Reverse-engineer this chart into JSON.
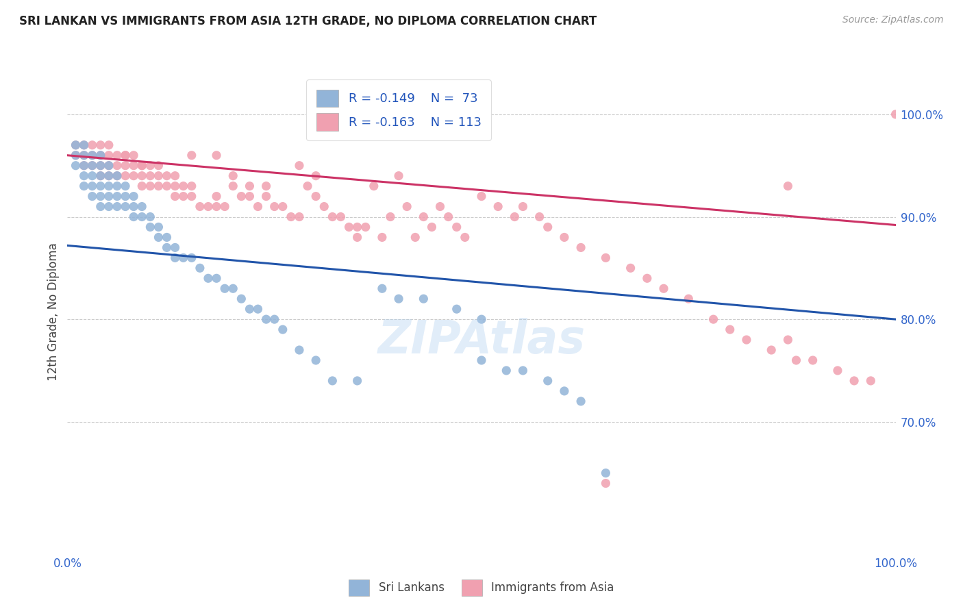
{
  "title": "SRI LANKAN VS IMMIGRANTS FROM ASIA 12TH GRADE, NO DIPLOMA CORRELATION CHART",
  "source": "Source: ZipAtlas.com",
  "ylabel": "12th Grade, No Diploma",
  "y_tick_values": [
    1.0,
    0.9,
    0.8,
    0.7
  ],
  "y_tick_labels": [
    "100.0%",
    "90.0%",
    "80.0%",
    "70.0%"
  ],
  "x_range": [
    0.0,
    1.0
  ],
  "y_range": [
    0.575,
    1.04
  ],
  "legend_blue_r": "R = -0.149",
  "legend_blue_n": "N =  73",
  "legend_pink_r": "R = -0.163",
  "legend_pink_n": "N = 113",
  "blue_color": "#92B4D8",
  "pink_color": "#F0A0B0",
  "line_blue_color": "#2255AA",
  "line_pink_color": "#CC3366",
  "blue_line_y0": 0.872,
  "blue_line_y1": 0.8,
  "pink_line_y0": 0.96,
  "pink_line_y1": 0.892,
  "blue_scatter_x": [
    0.01,
    0.01,
    0.01,
    0.02,
    0.02,
    0.02,
    0.02,
    0.02,
    0.03,
    0.03,
    0.03,
    0.03,
    0.03,
    0.04,
    0.04,
    0.04,
    0.04,
    0.04,
    0.04,
    0.05,
    0.05,
    0.05,
    0.05,
    0.05,
    0.06,
    0.06,
    0.06,
    0.06,
    0.07,
    0.07,
    0.07,
    0.08,
    0.08,
    0.08,
    0.09,
    0.09,
    0.1,
    0.1,
    0.11,
    0.11,
    0.12,
    0.12,
    0.13,
    0.13,
    0.14,
    0.15,
    0.16,
    0.17,
    0.18,
    0.19,
    0.2,
    0.21,
    0.22,
    0.23,
    0.24,
    0.25,
    0.26,
    0.28,
    0.3,
    0.32,
    0.35,
    0.38,
    0.4,
    0.43,
    0.47,
    0.5,
    0.5,
    0.53,
    0.55,
    0.58,
    0.6,
    0.62,
    0.65
  ],
  "blue_scatter_y": [
    0.97,
    0.96,
    0.95,
    0.97,
    0.96,
    0.95,
    0.94,
    0.93,
    0.96,
    0.95,
    0.94,
    0.93,
    0.92,
    0.96,
    0.95,
    0.94,
    0.93,
    0.92,
    0.91,
    0.95,
    0.94,
    0.93,
    0.92,
    0.91,
    0.94,
    0.93,
    0.92,
    0.91,
    0.93,
    0.92,
    0.91,
    0.92,
    0.91,
    0.9,
    0.91,
    0.9,
    0.9,
    0.89,
    0.89,
    0.88,
    0.88,
    0.87,
    0.87,
    0.86,
    0.86,
    0.86,
    0.85,
    0.84,
    0.84,
    0.83,
    0.83,
    0.82,
    0.81,
    0.81,
    0.8,
    0.8,
    0.79,
    0.77,
    0.76,
    0.74,
    0.74,
    0.83,
    0.82,
    0.82,
    0.81,
    0.8,
    0.76,
    0.75,
    0.75,
    0.74,
    0.73,
    0.72,
    0.65
  ],
  "pink_scatter_x": [
    0.01,
    0.01,
    0.02,
    0.02,
    0.02,
    0.03,
    0.03,
    0.03,
    0.04,
    0.04,
    0.04,
    0.04,
    0.05,
    0.05,
    0.05,
    0.05,
    0.06,
    0.06,
    0.06,
    0.07,
    0.07,
    0.07,
    0.08,
    0.08,
    0.08,
    0.09,
    0.09,
    0.09,
    0.1,
    0.1,
    0.1,
    0.11,
    0.11,
    0.12,
    0.12,
    0.13,
    0.13,
    0.14,
    0.14,
    0.15,
    0.15,
    0.16,
    0.17,
    0.18,
    0.18,
    0.19,
    0.2,
    0.2,
    0.21,
    0.22,
    0.22,
    0.23,
    0.24,
    0.24,
    0.25,
    0.26,
    0.27,
    0.28,
    0.29,
    0.3,
    0.31,
    0.32,
    0.33,
    0.34,
    0.35,
    0.36,
    0.37,
    0.38,
    0.39,
    0.4,
    0.41,
    0.42,
    0.43,
    0.44,
    0.45,
    0.46,
    0.47,
    0.48,
    0.5,
    0.52,
    0.54,
    0.55,
    0.57,
    0.58,
    0.6,
    0.62,
    0.65,
    0.68,
    0.7,
    0.72,
    0.75,
    0.78,
    0.8,
    0.82,
    0.85,
    0.87,
    0.88,
    0.9,
    0.93,
    0.95,
    0.97,
    1.0,
    0.15,
    0.07,
    0.09,
    0.11,
    0.13,
    0.18,
    0.28,
    0.3,
    0.35,
    0.65,
    0.87
  ],
  "pink_scatter_y": [
    0.97,
    0.96,
    0.97,
    0.96,
    0.95,
    0.97,
    0.96,
    0.95,
    0.97,
    0.96,
    0.95,
    0.94,
    0.97,
    0.96,
    0.95,
    0.94,
    0.96,
    0.95,
    0.94,
    0.96,
    0.95,
    0.94,
    0.96,
    0.95,
    0.94,
    0.95,
    0.94,
    0.93,
    0.95,
    0.94,
    0.93,
    0.94,
    0.93,
    0.94,
    0.93,
    0.93,
    0.92,
    0.93,
    0.92,
    0.93,
    0.92,
    0.91,
    0.91,
    0.92,
    0.91,
    0.91,
    0.94,
    0.93,
    0.92,
    0.93,
    0.92,
    0.91,
    0.93,
    0.92,
    0.91,
    0.91,
    0.9,
    0.9,
    0.93,
    0.92,
    0.91,
    0.9,
    0.9,
    0.89,
    0.89,
    0.89,
    0.93,
    0.88,
    0.9,
    0.94,
    0.91,
    0.88,
    0.9,
    0.89,
    0.91,
    0.9,
    0.89,
    0.88,
    0.92,
    0.91,
    0.9,
    0.91,
    0.9,
    0.89,
    0.88,
    0.87,
    0.86,
    0.85,
    0.84,
    0.83,
    0.82,
    0.8,
    0.79,
    0.78,
    0.77,
    0.78,
    0.76,
    0.76,
    0.75,
    0.74,
    0.74,
    1.0,
    0.96,
    0.96,
    0.95,
    0.95,
    0.94,
    0.96,
    0.95,
    0.94,
    0.88,
    0.64,
    0.93
  ]
}
